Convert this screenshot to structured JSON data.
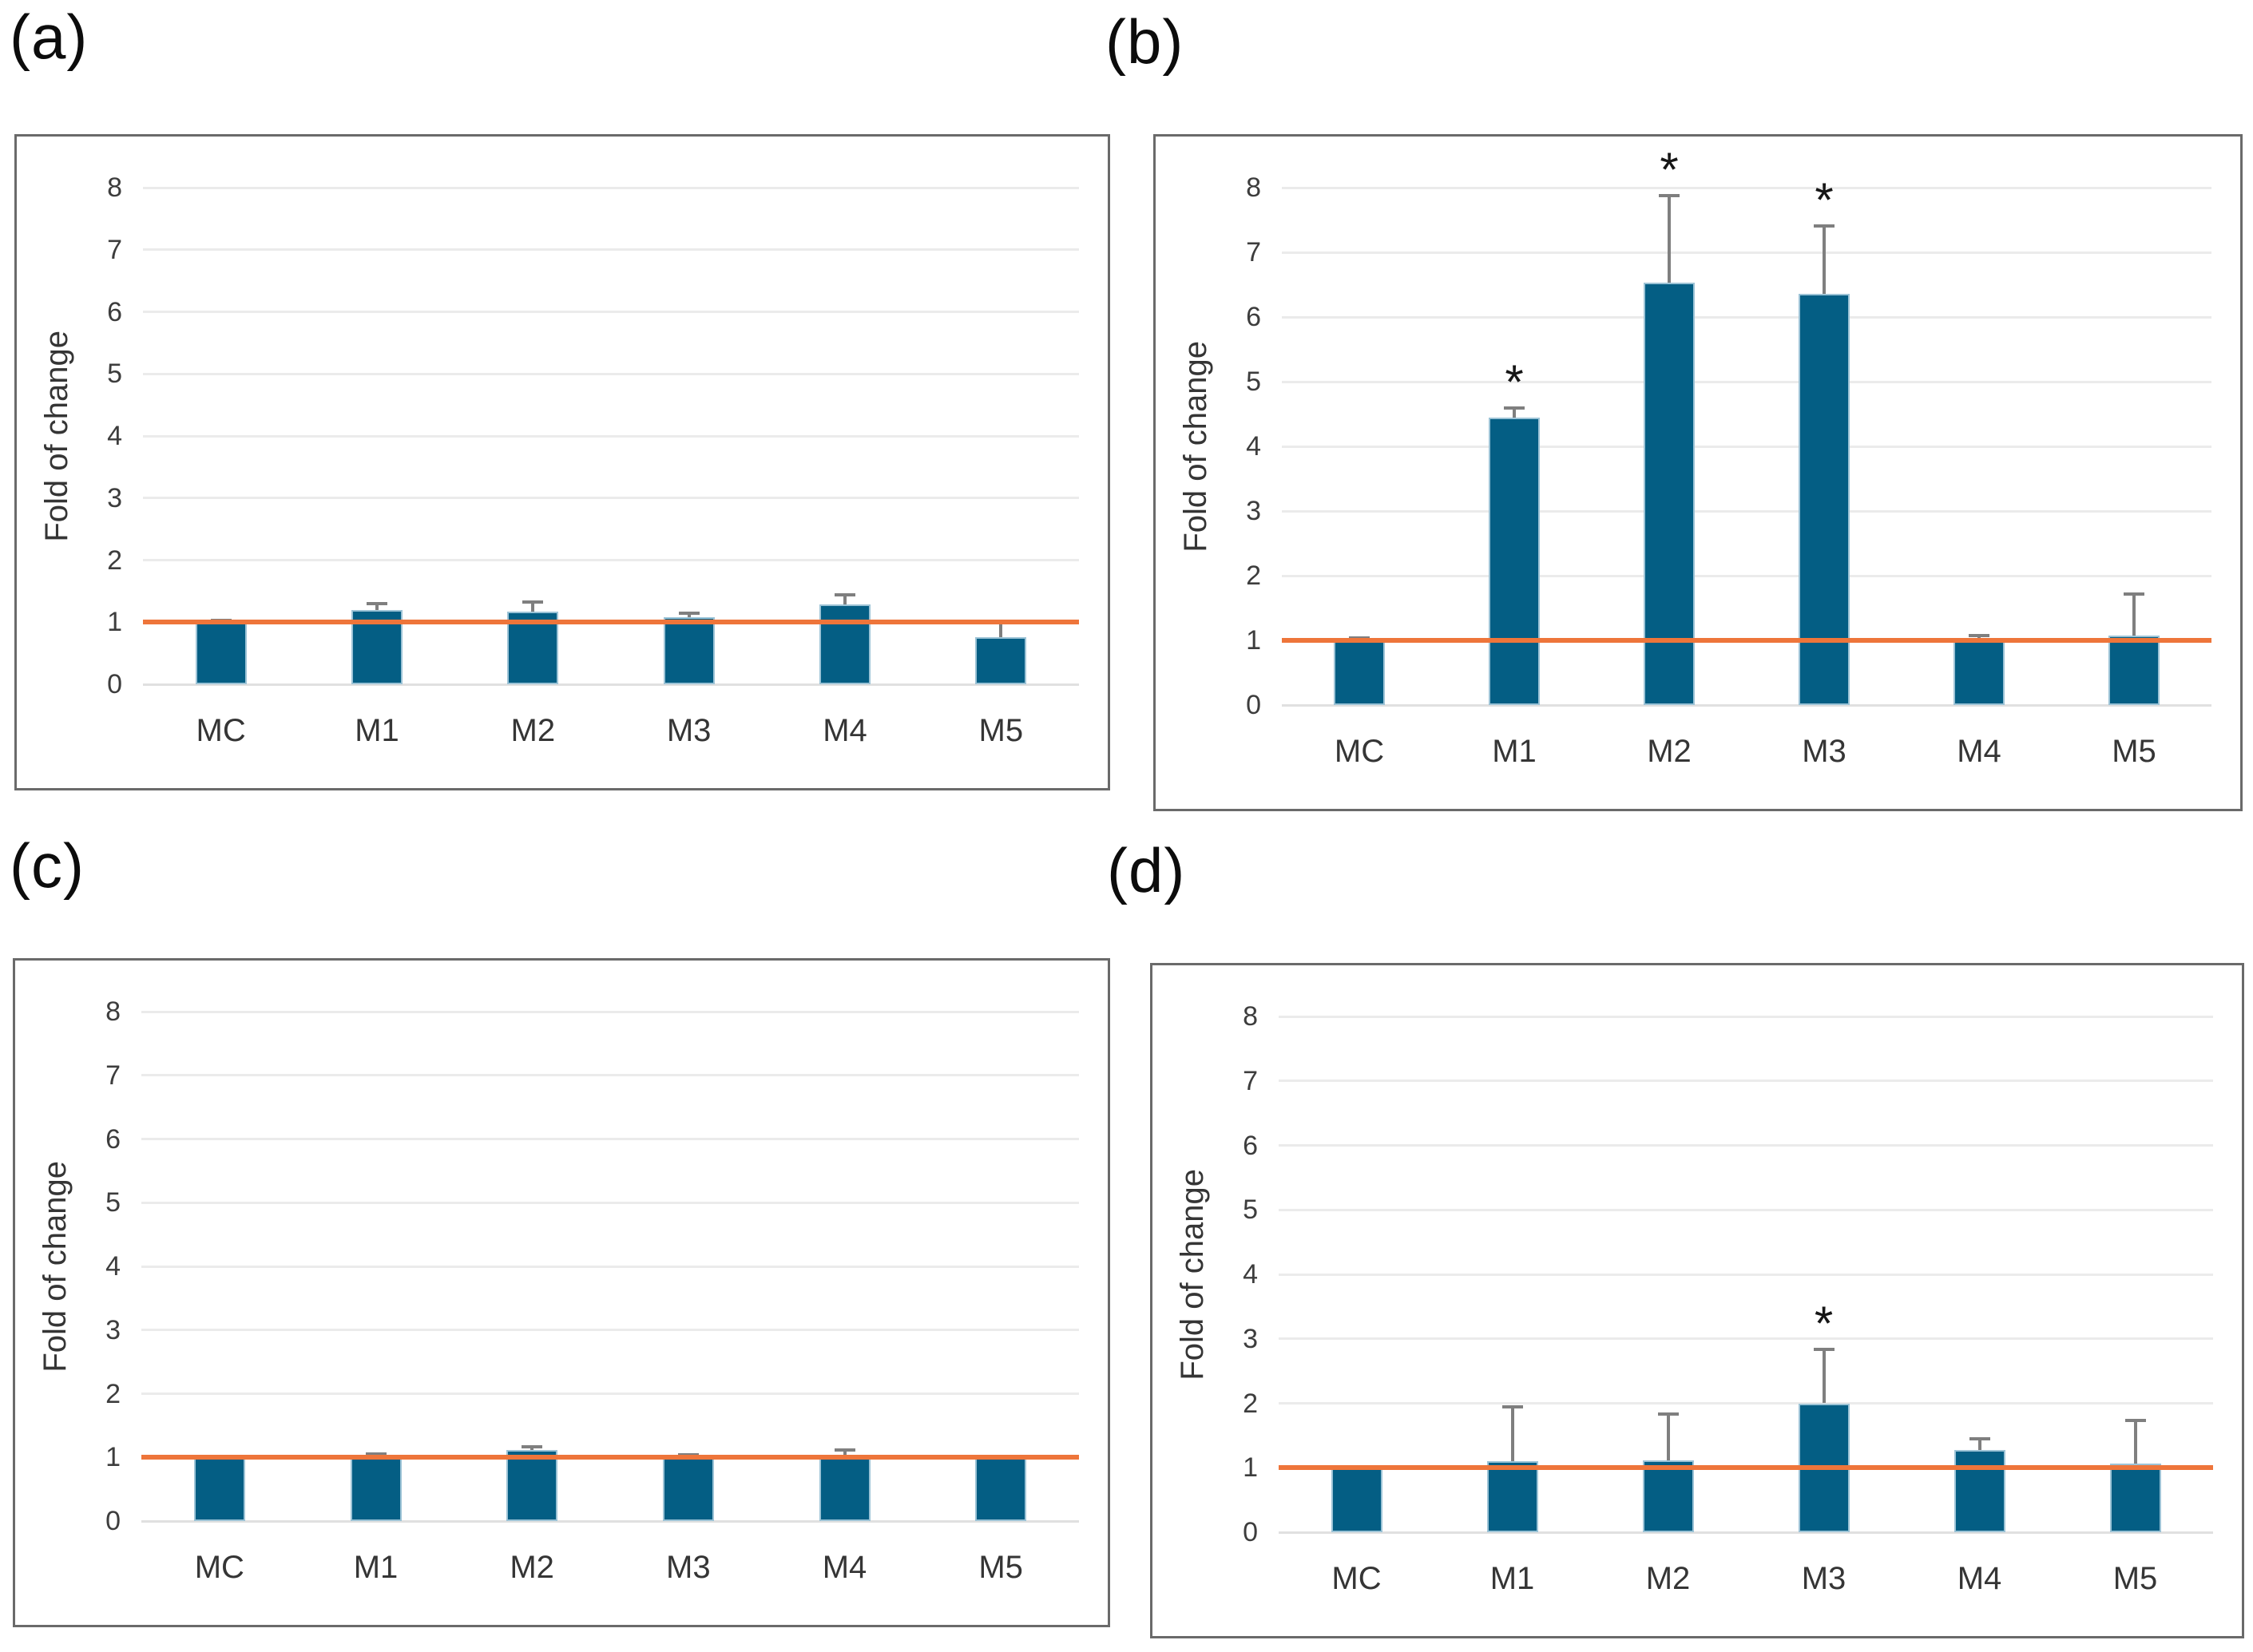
{
  "figure": {
    "background": "#ffffff",
    "panels": [
      {
        "letter": "(a)"
      },
      {
        "letter": "(b)"
      },
      {
        "letter": "(c)"
      },
      {
        "letter": "(d)"
      }
    ]
  },
  "style": {
    "bar_color": "#045e84",
    "bar_edge_color": "#9cc3d6",
    "error_bar_color": "#7f7f7f",
    "gridline_color": "#ebebeb",
    "baseline_color": "#e0e0e0",
    "reference_line_color": "#ee753a",
    "axis_text_color": "#3d3d3d",
    "star_color": "#161616",
    "panel_border_color": "#6a6a6a"
  },
  "chart_data": [
    {
      "panel": "(a)",
      "type": "bar",
      "title": "",
      "ylabel": "Fold of change",
      "xlabel": "",
      "categories": [
        "MC",
        "M1",
        "M2",
        "M3",
        "M4",
        "M5"
      ],
      "values": [
        1.0,
        1.2,
        1.17,
        1.08,
        1.28,
        0.76
      ],
      "errors_upper": [
        0.03,
        0.1,
        0.15,
        0.07,
        0.16,
        0.23
      ],
      "significance": [
        false,
        false,
        false,
        false,
        false,
        false
      ],
      "significance_marker": "*",
      "ylim": [
        0,
        8
      ],
      "yticks": [
        0,
        1,
        2,
        3,
        4,
        5,
        6,
        7,
        8
      ],
      "reference_line_y": 1,
      "grid": true,
      "legend": "none"
    },
    {
      "panel": "(b)",
      "type": "bar",
      "title": "",
      "ylabel": "Fold of change",
      "xlabel": "",
      "categories": [
        "MC",
        "M1",
        "M2",
        "M3",
        "M4",
        "M5"
      ],
      "values": [
        1.0,
        4.45,
        6.53,
        6.36,
        1.0,
        1.08
      ],
      "errors_upper": [
        0.04,
        0.14,
        1.35,
        1.05,
        0.07,
        0.64
      ],
      "significance": [
        false,
        true,
        true,
        true,
        false,
        false
      ],
      "significance_marker": "*",
      "ylim": [
        0,
        8
      ],
      "yticks": [
        0,
        1,
        2,
        3,
        4,
        5,
        6,
        7,
        8
      ],
      "reference_line_y": 1,
      "grid": true,
      "legend": "none"
    },
    {
      "panel": "(c)",
      "type": "bar",
      "title": "",
      "ylabel": "Fold of change",
      "xlabel": "",
      "categories": [
        "MC",
        "M1",
        "M2",
        "M3",
        "M4",
        "M5"
      ],
      "values": [
        1.0,
        1.0,
        1.12,
        1.0,
        1.03,
        1.0
      ],
      "errors_upper": [
        0,
        0.05,
        0.04,
        0.04,
        0.09,
        0
      ],
      "significance": [
        false,
        false,
        false,
        false,
        false,
        false
      ],
      "significance_marker": "*",
      "ylim": [
        0,
        8
      ],
      "yticks": [
        0,
        1,
        2,
        3,
        4,
        5,
        6,
        7,
        8
      ],
      "reference_line_y": 1,
      "grid": true,
      "legend": "none"
    },
    {
      "panel": "(d)",
      "type": "bar",
      "title": "",
      "ylabel": "Fold of change",
      "xlabel": "",
      "categories": [
        "MC",
        "M1",
        "M2",
        "M3",
        "M4",
        "M5"
      ],
      "values": [
        1.0,
        1.1,
        1.11,
        2.0,
        1.27,
        1.07
      ],
      "errors_upper": [
        0,
        0.85,
        0.72,
        0.83,
        0.18,
        0.66
      ],
      "significance": [
        false,
        false,
        false,
        true,
        false,
        false
      ],
      "significance_marker": "*",
      "ylim": [
        0,
        8
      ],
      "yticks": [
        0,
        1,
        2,
        3,
        4,
        5,
        6,
        7,
        8
      ],
      "reference_line_y": 1,
      "grid": true,
      "legend": "none"
    }
  ]
}
